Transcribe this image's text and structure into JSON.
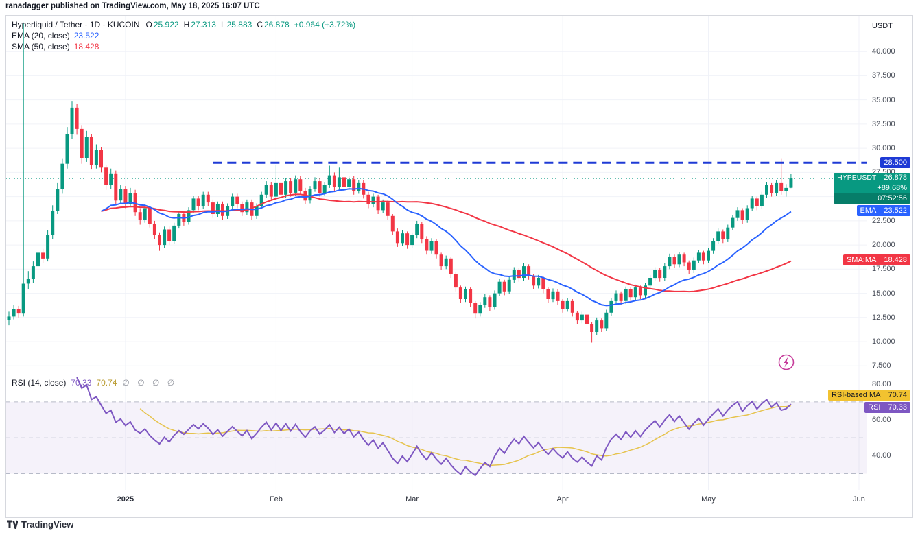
{
  "byline": "ranadagger published on TradingView.com, May 18, 2025 16:07 UTC",
  "footer": {
    "brand": "TradingView"
  },
  "legend": {
    "title": "Hyperliquid / Tether · 1D · KUCOIN",
    "ohlc": {
      "o_label": "O",
      "o": "25.922",
      "h_label": "H",
      "h": "27.313",
      "l_label": "L",
      "l": "25.883",
      "c_label": "C",
      "c": "26.878",
      "change": "+0.964 (+3.72%)"
    },
    "ema": {
      "label": "EMA (20, close)",
      "value": "23.522"
    },
    "sma": {
      "label": "SMA (50, close)",
      "value": "18.428"
    },
    "rsi": {
      "label": "RSI (14, close)",
      "value": "70.33",
      "ma_value": "70.74",
      "hidden": "∅ ∅ ∅ ∅"
    }
  },
  "price_axis": {
    "unit": "USDT",
    "ticks": [
      "40.000",
      "37.500",
      "35.000",
      "32.500",
      "30.000",
      "27.500",
      "25.000",
      "22.500",
      "20.000",
      "17.500",
      "15.000",
      "12.500",
      "10.000",
      "7.500"
    ],
    "badges": {
      "resistance": {
        "label": "28.500",
        "price": 28.5,
        "color": "#1e3ad5"
      },
      "symbol": {
        "name": "HYPEUSDT",
        "price_label": "26.878",
        "price": 26.878,
        "change_pct": "+89.68%",
        "countdown": "07:52:56",
        "color": "#089981"
      },
      "ema": {
        "label": "EMA",
        "value": "23.522",
        "price": 23.522,
        "color": "#2962ff"
      },
      "sma": {
        "label": "SMA:MA",
        "value": "18.428",
        "price": 18.428,
        "color": "#f23645"
      }
    }
  },
  "rsi_axis": {
    "ticks": [
      {
        "label": "80.00",
        "value": 80
      },
      {
        "label": "60.00",
        "value": 60
      },
      {
        "label": "40.00",
        "value": 40
      }
    ],
    "badges": {
      "ma": {
        "label": "RSI-based MA",
        "value": "70.74",
        "color": "#f2c230"
      },
      "rsi": {
        "label": "RSI",
        "value": "70.33",
        "color": "#7e57c2"
      }
    }
  },
  "time_axis": {
    "labels": [
      {
        "label": "2025",
        "slot": 24,
        "year": true
      },
      {
        "label": "Feb",
        "slot": 55
      },
      {
        "label": "Mar",
        "slot": 83
      },
      {
        "label": "Apr",
        "slot": 114
      },
      {
        "label": "May",
        "slot": 144
      },
      {
        "label": "Jun",
        "slot": 175
      }
    ]
  },
  "colors": {
    "up": "#089981",
    "down": "#f23645",
    "ema": "#2962ff",
    "sma": "#f23645",
    "resistance": "#1e3ad5",
    "last_price": "#089981",
    "rsi": "#7e57c2",
    "rsi_ma": "#e6c34c",
    "rsi_band_fill": "rgba(126,87,194,0.08)",
    "rsi_band_line": "#b6bac8",
    "flash": "#c63a9a",
    "grid": "#f0f2f8"
  },
  "icons": {
    "flash": "lightning-bolt-in-circle",
    "logo": "tradingview-mark"
  },
  "chart_data": {
    "type": "candlestick",
    "title": "Hyperliquid / Tether · 1D · KUCOIN",
    "symbol": "HYPEUSDT",
    "interval": "1D",
    "start_date": "2024-12-08",
    "frequency": "daily",
    "ylim": [
      6.6,
      43.7
    ],
    "price_gridlines": [
      7.5,
      10,
      12.5,
      15,
      17.5,
      20,
      22.5,
      25,
      27.5,
      30,
      32.5,
      35,
      37.5,
      40
    ],
    "candles": [
      [
        12.2,
        13.1,
        11.7,
        12.6
      ],
      [
        12.6,
        13.8,
        12.3,
        13.4
      ],
      [
        13.4,
        13.7,
        12.5,
        12.9
      ],
      [
        12.9,
        43.0,
        12.6,
        16.0
      ],
      [
        16.0,
        17.3,
        15.4,
        16.5
      ],
      [
        16.5,
        18.3,
        16.1,
        17.8
      ],
      [
        17.8,
        19.8,
        17.4,
        19.2
      ],
      [
        19.2,
        19.6,
        18.1,
        18.6
      ],
      [
        18.6,
        21.5,
        18.3,
        21.0
      ],
      [
        21.0,
        24.1,
        20.6,
        23.5
      ],
      [
        23.5,
        26.4,
        23.2,
        25.8
      ],
      [
        25.8,
        28.9,
        25.3,
        28.4
      ],
      [
        28.4,
        32.2,
        27.9,
        31.5
      ],
      [
        31.5,
        34.9,
        31.0,
        34.2
      ],
      [
        34.2,
        34.6,
        31.4,
        32.0
      ],
      [
        32.0,
        32.4,
        28.4,
        29.0
      ],
      [
        29.0,
        31.8,
        28.6,
        31.2
      ],
      [
        31.2,
        31.5,
        27.8,
        28.3
      ],
      [
        28.3,
        30.4,
        27.9,
        29.8
      ],
      [
        29.8,
        30.1,
        27.5,
        28.0
      ],
      [
        28.0,
        28.3,
        25.7,
        26.2
      ],
      [
        26.2,
        27.9,
        25.8,
        27.4
      ],
      [
        27.4,
        27.7,
        24.1,
        24.6
      ],
      [
        24.6,
        26.2,
        24.2,
        25.8
      ],
      [
        25.8,
        26.1,
        23.8,
        24.2
      ],
      [
        24.2,
        25.9,
        23.9,
        25.4
      ],
      [
        25.4,
        25.7,
        23.0,
        23.4
      ],
      [
        23.4,
        23.8,
        22.1,
        22.6
      ],
      [
        22.6,
        24.2,
        22.3,
        23.8
      ],
      [
        23.8,
        24.0,
        21.8,
        22.2
      ],
      [
        22.2,
        22.5,
        20.6,
        21.0
      ],
      [
        21.0,
        21.3,
        19.4,
        20.0
      ],
      [
        20.0,
        21.9,
        19.7,
        21.6
      ],
      [
        21.6,
        21.9,
        20.0,
        20.4
      ],
      [
        20.4,
        22.3,
        20.1,
        22.0
      ],
      [
        22.0,
        23.5,
        21.7,
        23.2
      ],
      [
        23.2,
        23.5,
        22.0,
        22.4
      ],
      [
        22.4,
        23.9,
        22.1,
        23.6
      ],
      [
        23.6,
        25.1,
        23.3,
        24.8
      ],
      [
        24.8,
        25.1,
        23.6,
        24.0
      ],
      [
        24.0,
        25.5,
        23.7,
        25.2
      ],
      [
        25.2,
        25.5,
        24.0,
        24.4
      ],
      [
        24.4,
        24.7,
        22.8,
        23.2
      ],
      [
        23.2,
        24.5,
        22.9,
        24.2
      ],
      [
        24.2,
        24.5,
        22.6,
        23.0
      ],
      [
        23.0,
        24.3,
        22.7,
        24.0
      ],
      [
        24.0,
        25.3,
        23.7,
        25.0
      ],
      [
        25.0,
        25.3,
        23.8,
        24.2
      ],
      [
        24.2,
        24.5,
        23.0,
        23.4
      ],
      [
        23.4,
        24.7,
        23.1,
        24.4
      ],
      [
        24.4,
        24.7,
        22.6,
        23.0
      ],
      [
        23.0,
        24.3,
        22.7,
        24.0
      ],
      [
        24.0,
        25.5,
        23.7,
        25.2
      ],
      [
        25.2,
        26.6,
        24.9,
        26.2
      ],
      [
        26.2,
        26.5,
        24.6,
        25.0
      ],
      [
        25.0,
        28.3,
        24.7,
        26.4
      ],
      [
        26.4,
        26.7,
        24.8,
        25.2
      ],
      [
        25.2,
        26.9,
        24.9,
        26.6
      ],
      [
        26.6,
        26.9,
        25.0,
        25.4
      ],
      [
        25.4,
        27.2,
        25.1,
        26.8
      ],
      [
        26.8,
        27.1,
        25.2,
        25.6
      ],
      [
        25.6,
        25.9,
        24.2,
        24.6
      ],
      [
        24.6,
        26.1,
        24.3,
        25.8
      ],
      [
        25.8,
        27.0,
        25.5,
        26.6
      ],
      [
        26.6,
        26.9,
        25.0,
        25.4
      ],
      [
        25.4,
        26.5,
        25.1,
        26.2
      ],
      [
        26.2,
        28.2,
        25.9,
        27.2
      ],
      [
        27.2,
        27.5,
        25.6,
        26.0
      ],
      [
        26.0,
        28.0,
        25.7,
        27.0
      ],
      [
        27.0,
        27.3,
        25.6,
        26.0
      ],
      [
        26.0,
        27.1,
        25.7,
        26.8
      ],
      [
        26.8,
        27.1,
        25.2,
        25.6
      ],
      [
        25.6,
        26.7,
        25.3,
        26.4
      ],
      [
        26.4,
        26.7,
        24.8,
        25.2
      ],
      [
        25.2,
        25.5,
        23.8,
        24.2
      ],
      [
        24.2,
        25.3,
        23.9,
        25.0
      ],
      [
        25.0,
        25.2,
        23.2,
        23.6
      ],
      [
        23.6,
        24.7,
        23.3,
        24.4
      ],
      [
        24.4,
        24.6,
        22.6,
        23.0
      ],
      [
        23.0,
        23.2,
        21.0,
        21.4
      ],
      [
        21.4,
        21.7,
        19.8,
        20.2
      ],
      [
        20.2,
        21.5,
        19.9,
        21.2
      ],
      [
        21.2,
        21.4,
        19.6,
        20.0
      ],
      [
        20.0,
        21.3,
        19.7,
        21.0
      ],
      [
        21.0,
        22.5,
        20.7,
        22.2
      ],
      [
        22.2,
        22.4,
        20.2,
        20.6
      ],
      [
        20.6,
        20.9,
        19.0,
        19.4
      ],
      [
        19.4,
        20.7,
        19.1,
        20.4
      ],
      [
        20.4,
        20.6,
        18.6,
        19.0
      ],
      [
        19.0,
        19.2,
        17.4,
        17.8
      ],
      [
        17.8,
        18.9,
        17.5,
        18.6
      ],
      [
        18.6,
        18.8,
        16.6,
        17.0
      ],
      [
        17.0,
        17.2,
        15.2,
        15.6
      ],
      [
        15.6,
        15.8,
        14.0,
        14.4
      ],
      [
        14.4,
        15.7,
        14.1,
        15.4
      ],
      [
        15.4,
        15.6,
        13.6,
        14.0
      ],
      [
        14.0,
        14.2,
        12.4,
        12.9
      ],
      [
        12.9,
        14.1,
        12.6,
        13.8
      ],
      [
        13.8,
        14.9,
        13.5,
        14.6
      ],
      [
        14.6,
        14.8,
        13.2,
        13.6
      ],
      [
        13.6,
        15.3,
        13.3,
        15.0
      ],
      [
        15.0,
        16.5,
        14.7,
        16.2
      ],
      [
        16.2,
        16.4,
        14.8,
        15.2
      ],
      [
        15.2,
        16.7,
        14.9,
        16.4
      ],
      [
        16.4,
        17.7,
        16.1,
        17.4
      ],
      [
        17.4,
        17.6,
        16.2,
        16.6
      ],
      [
        16.6,
        18.1,
        16.3,
        17.8
      ],
      [
        17.8,
        18.0,
        16.4,
        16.8
      ],
      [
        16.8,
        17.0,
        15.4,
        15.8
      ],
      [
        15.8,
        16.9,
        15.5,
        16.6
      ],
      [
        16.6,
        16.8,
        15.0,
        15.4
      ],
      [
        15.4,
        15.6,
        14.0,
        14.4
      ],
      [
        14.4,
        15.5,
        14.1,
        15.2
      ],
      [
        15.2,
        15.4,
        13.8,
        14.2
      ],
      [
        14.2,
        14.4,
        13.0,
        13.4
      ],
      [
        13.4,
        14.5,
        13.1,
        14.2
      ],
      [
        14.2,
        14.4,
        12.6,
        13.0
      ],
      [
        13.0,
        13.2,
        11.8,
        12.2
      ],
      [
        12.2,
        13.1,
        11.9,
        12.8
      ],
      [
        12.8,
        13.0,
        11.4,
        11.8
      ],
      [
        11.8,
        12.0,
        9.9,
        11.0
      ],
      [
        11.0,
        12.5,
        10.7,
        12.2
      ],
      [
        12.2,
        12.4,
        11.0,
        11.4
      ],
      [
        11.4,
        13.3,
        11.1,
        13.0
      ],
      [
        13.0,
        14.5,
        12.7,
        14.2
      ],
      [
        14.2,
        15.3,
        13.9,
        15.0
      ],
      [
        15.0,
        15.2,
        13.8,
        14.2
      ],
      [
        14.2,
        15.7,
        13.9,
        15.4
      ],
      [
        15.4,
        15.6,
        14.2,
        14.6
      ],
      [
        14.6,
        15.9,
        14.3,
        15.6
      ],
      [
        15.6,
        15.8,
        14.4,
        14.8
      ],
      [
        14.8,
        16.1,
        14.5,
        15.8
      ],
      [
        15.8,
        16.9,
        15.5,
        16.6
      ],
      [
        16.6,
        17.7,
        16.3,
        17.4
      ],
      [
        17.4,
        17.6,
        16.2,
        16.6
      ],
      [
        16.6,
        18.1,
        16.3,
        17.8
      ],
      [
        17.8,
        19.1,
        17.5,
        18.8
      ],
      [
        18.8,
        19.0,
        17.6,
        18.0
      ],
      [
        18.0,
        19.3,
        17.7,
        19.0
      ],
      [
        19.0,
        19.2,
        17.8,
        18.2
      ],
      [
        18.2,
        18.4,
        17.0,
        17.4
      ],
      [
        17.4,
        18.7,
        17.1,
        18.4
      ],
      [
        18.4,
        19.5,
        18.1,
        19.2
      ],
      [
        19.2,
        19.4,
        18.0,
        18.4
      ],
      [
        18.4,
        19.7,
        18.1,
        19.4
      ],
      [
        19.4,
        20.7,
        19.1,
        20.4
      ],
      [
        20.4,
        21.7,
        20.1,
        21.4
      ],
      [
        21.4,
        21.6,
        20.2,
        20.6
      ],
      [
        20.6,
        22.1,
        20.3,
        21.8
      ],
      [
        21.8,
        23.1,
        21.5,
        22.8
      ],
      [
        22.8,
        23.9,
        22.5,
        23.6
      ],
      [
        23.6,
        23.8,
        22.2,
        22.6
      ],
      [
        22.6,
        24.1,
        22.3,
        23.8
      ],
      [
        23.8,
        25.1,
        23.5,
        24.8
      ],
      [
        24.8,
        25.0,
        23.6,
        24.0
      ],
      [
        24.0,
        25.5,
        23.7,
        25.2
      ],
      [
        25.2,
        26.5,
        24.9,
        26.2
      ],
      [
        26.2,
        26.4,
        25.0,
        25.4
      ],
      [
        25.4,
        26.7,
        25.1,
        26.4
      ],
      [
        26.4,
        28.9,
        25.2,
        25.6
      ],
      [
        25.6,
        26.3,
        25.0,
        25.9
      ],
      [
        25.922,
        27.313,
        25.883,
        26.878
      ]
    ],
    "overlays": [
      {
        "name": "EMA",
        "period": 20,
        "source": "close",
        "last_value": 23.522,
        "color": "#2962ff"
      },
      {
        "name": "SMA",
        "period": 50,
        "source": "close",
        "last_value": 18.428,
        "color": "#f23645"
      }
    ],
    "levels": [
      {
        "name": "resistance",
        "value": 28.5,
        "style": "dashed",
        "color": "#1e3ad5",
        "start_slot": 42
      },
      {
        "name": "last-price",
        "value": 26.878,
        "style": "dotted",
        "color": "#089981"
      }
    ],
    "rsi_pane": {
      "type": "line",
      "name": "RSI",
      "period": 14,
      "ma_period": 14,
      "last_value": 70.33,
      "ma_last_value": 70.74,
      "band": [
        30,
        70
      ],
      "midline": 50,
      "ylim": [
        21,
        84.5
      ],
      "gridlines": [
        40,
        60,
        80
      ]
    }
  }
}
